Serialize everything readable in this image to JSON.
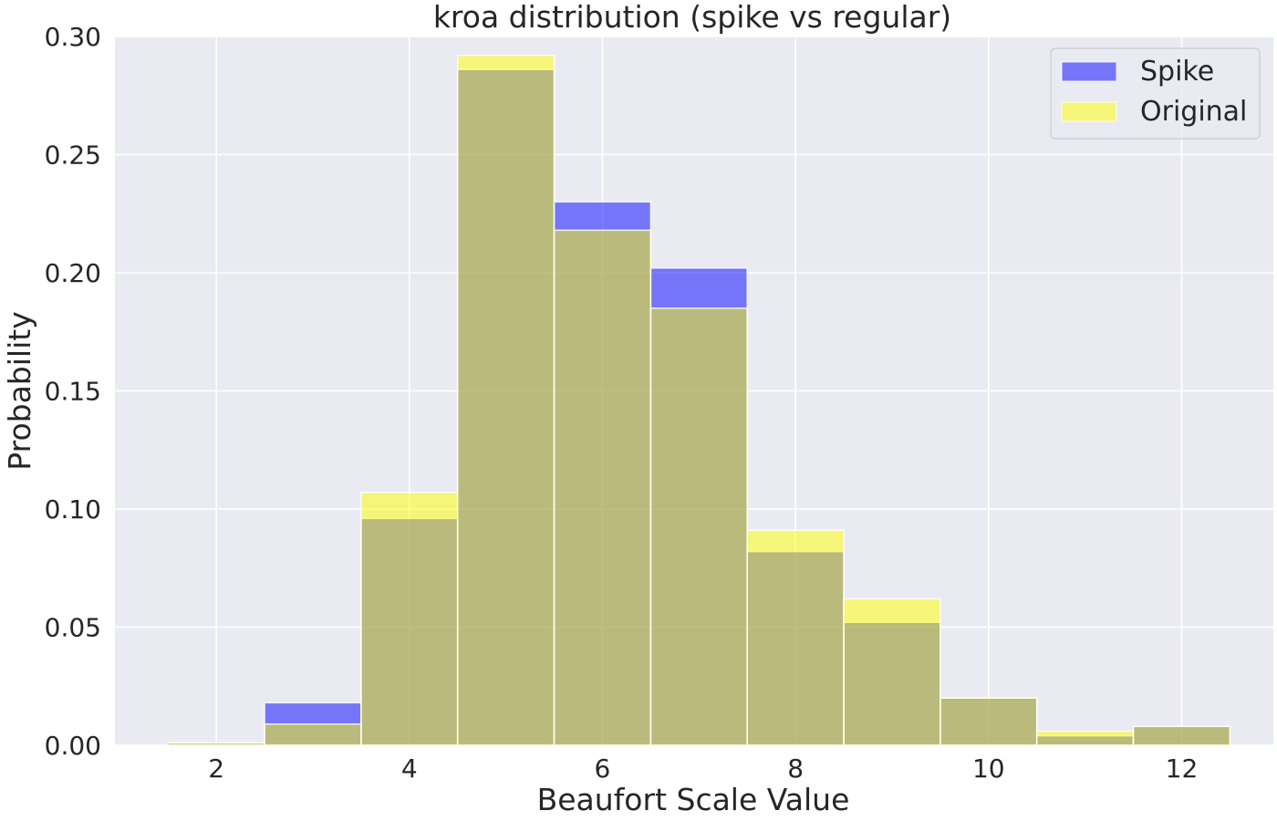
{
  "chart_data": {
    "type": "bar",
    "title": "kroa distribution (spike vs regular)",
    "xlabel": "Beaufort Scale Value",
    "ylabel": "Probability",
    "x": [
      2,
      3,
      4,
      5,
      6,
      7,
      8,
      9,
      10,
      11,
      12
    ],
    "bin_width": 1,
    "xlim": [
      0.95,
      12.95
    ],
    "ylim": [
      0,
      0.3
    ],
    "xticks": [
      2,
      4,
      6,
      8,
      10,
      12
    ],
    "yticks": [
      0.0,
      0.05,
      0.1,
      0.15,
      0.2,
      0.25,
      0.3
    ],
    "ytick_labels": [
      "0.00",
      "0.05",
      "0.10",
      "0.15",
      "0.20",
      "0.25",
      "0.30"
    ],
    "grid": true,
    "legend_position": "top-right",
    "series": [
      {
        "name": "Spike",
        "color": "#0000ff",
        "values": [
          0.001,
          0.018,
          0.096,
          0.286,
          0.23,
          0.202,
          0.082,
          0.052,
          0.02,
          0.004,
          0.008
        ]
      },
      {
        "name": "Original",
        "color": "#ffff00",
        "values": [
          0.001,
          0.009,
          0.107,
          0.292,
          0.218,
          0.185,
          0.091,
          0.062,
          0.02,
          0.006,
          0.008
        ]
      }
    ],
    "colors": {
      "background": "#eaeaf2",
      "grid": "#ffffff",
      "text": "#262626"
    }
  }
}
